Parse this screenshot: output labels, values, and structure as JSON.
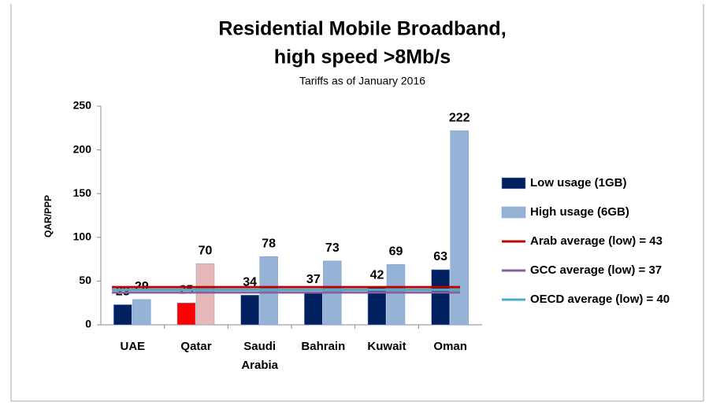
{
  "chart_data": {
    "type": "bar",
    "title": [
      "Residential Mobile Broadband,",
      "high speed >8Mb/s"
    ],
    "subtitle": "Tariffs as of January 2016",
    "y_label": "QAR/PPP",
    "categories": [
      "UAE",
      "Qatar",
      "Saudi Arabia",
      "Bahrain",
      "Kuwait",
      "Oman"
    ],
    "series": [
      {
        "name": "Low usage (1GB)",
        "color": "#002060",
        "colors": [
          "#002060",
          "#ff0000",
          "#002060",
          "#002060",
          "#002060",
          "#002060"
        ],
        "values": [
          23,
          25,
          34,
          37,
          42,
          63
        ]
      },
      {
        "name": "High usage (6GB)",
        "color": "#95b3d7",
        "colors": [
          "#95b3d7",
          "#e6b9b8",
          "#95b3d7",
          "#95b3d7",
          "#95b3d7",
          "#95b3d7"
        ],
        "values": [
          29,
          70,
          78,
          73,
          69,
          222
        ]
      }
    ],
    "reference_lines": [
      {
        "name": "Arab average (low) = 43",
        "color": "#c00000",
        "value": 43
      },
      {
        "name": "GCC average (low) = 37",
        "color": "#8064a2",
        "value": 37
      },
      {
        "name": "OECD average (low) = 40",
        "color": "#4bacc6",
        "value": 40
      }
    ],
    "ylim": [
      0,
      250
    ],
    "yticks": [
      0,
      50,
      100,
      150,
      200,
      250
    ],
    "grid": false,
    "legend": "right"
  }
}
